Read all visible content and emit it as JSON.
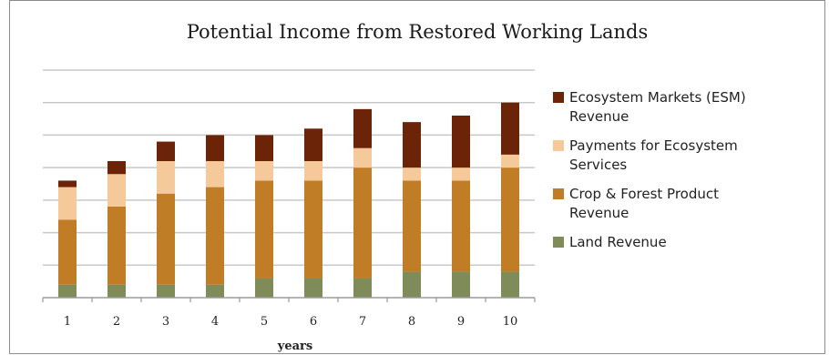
{
  "chart_data": {
    "type": "bar",
    "stacked": true,
    "title": "Potential Income from Restored Working Lands",
    "xlabel": "years",
    "ylabel": "",
    "categories": [
      "1",
      "2",
      "3",
      "4",
      "5",
      "6",
      "7",
      "8",
      "9",
      "10"
    ],
    "ylim": [
      0,
      7
    ],
    "grid": true,
    "legend_position": "right",
    "series": [
      {
        "name": "Land Revenue",
        "color": "#7f8c5a",
        "values": [
          0.4,
          0.4,
          0.4,
          0.4,
          0.6,
          0.6,
          0.6,
          0.8,
          0.8,
          0.8
        ]
      },
      {
        "name": "Crop & Forest Product Revenue",
        "color": "#c17d25",
        "values": [
          2.0,
          2.4,
          2.8,
          3.0,
          3.0,
          3.0,
          3.4,
          2.8,
          2.8,
          3.2
        ]
      },
      {
        "name": "Payments for Ecosystem Services",
        "color": "#f5c99a",
        "values": [
          1.0,
          1.0,
          1.0,
          0.8,
          0.6,
          0.6,
          0.6,
          0.4,
          0.4,
          0.4
        ]
      },
      {
        "name": "Ecosystem Markets (ESM) Revenue",
        "color": "#6b2408",
        "values": [
          0.2,
          0.4,
          0.6,
          0.8,
          0.8,
          1.0,
          1.2,
          1.4,
          1.6,
          1.6
        ]
      }
    ]
  },
  "legend": [
    {
      "label": "Ecosystem Markets (ESM)\nRevenue",
      "color": "#6b2408"
    },
    {
      "label": "Payments for Ecosystem\nServices",
      "color": "#f5c99a"
    },
    {
      "label": "Crop & Forest Product\nRevenue",
      "color": "#c17d25"
    },
    {
      "label": "Land Revenue",
      "color": "#7f8c5a"
    }
  ]
}
